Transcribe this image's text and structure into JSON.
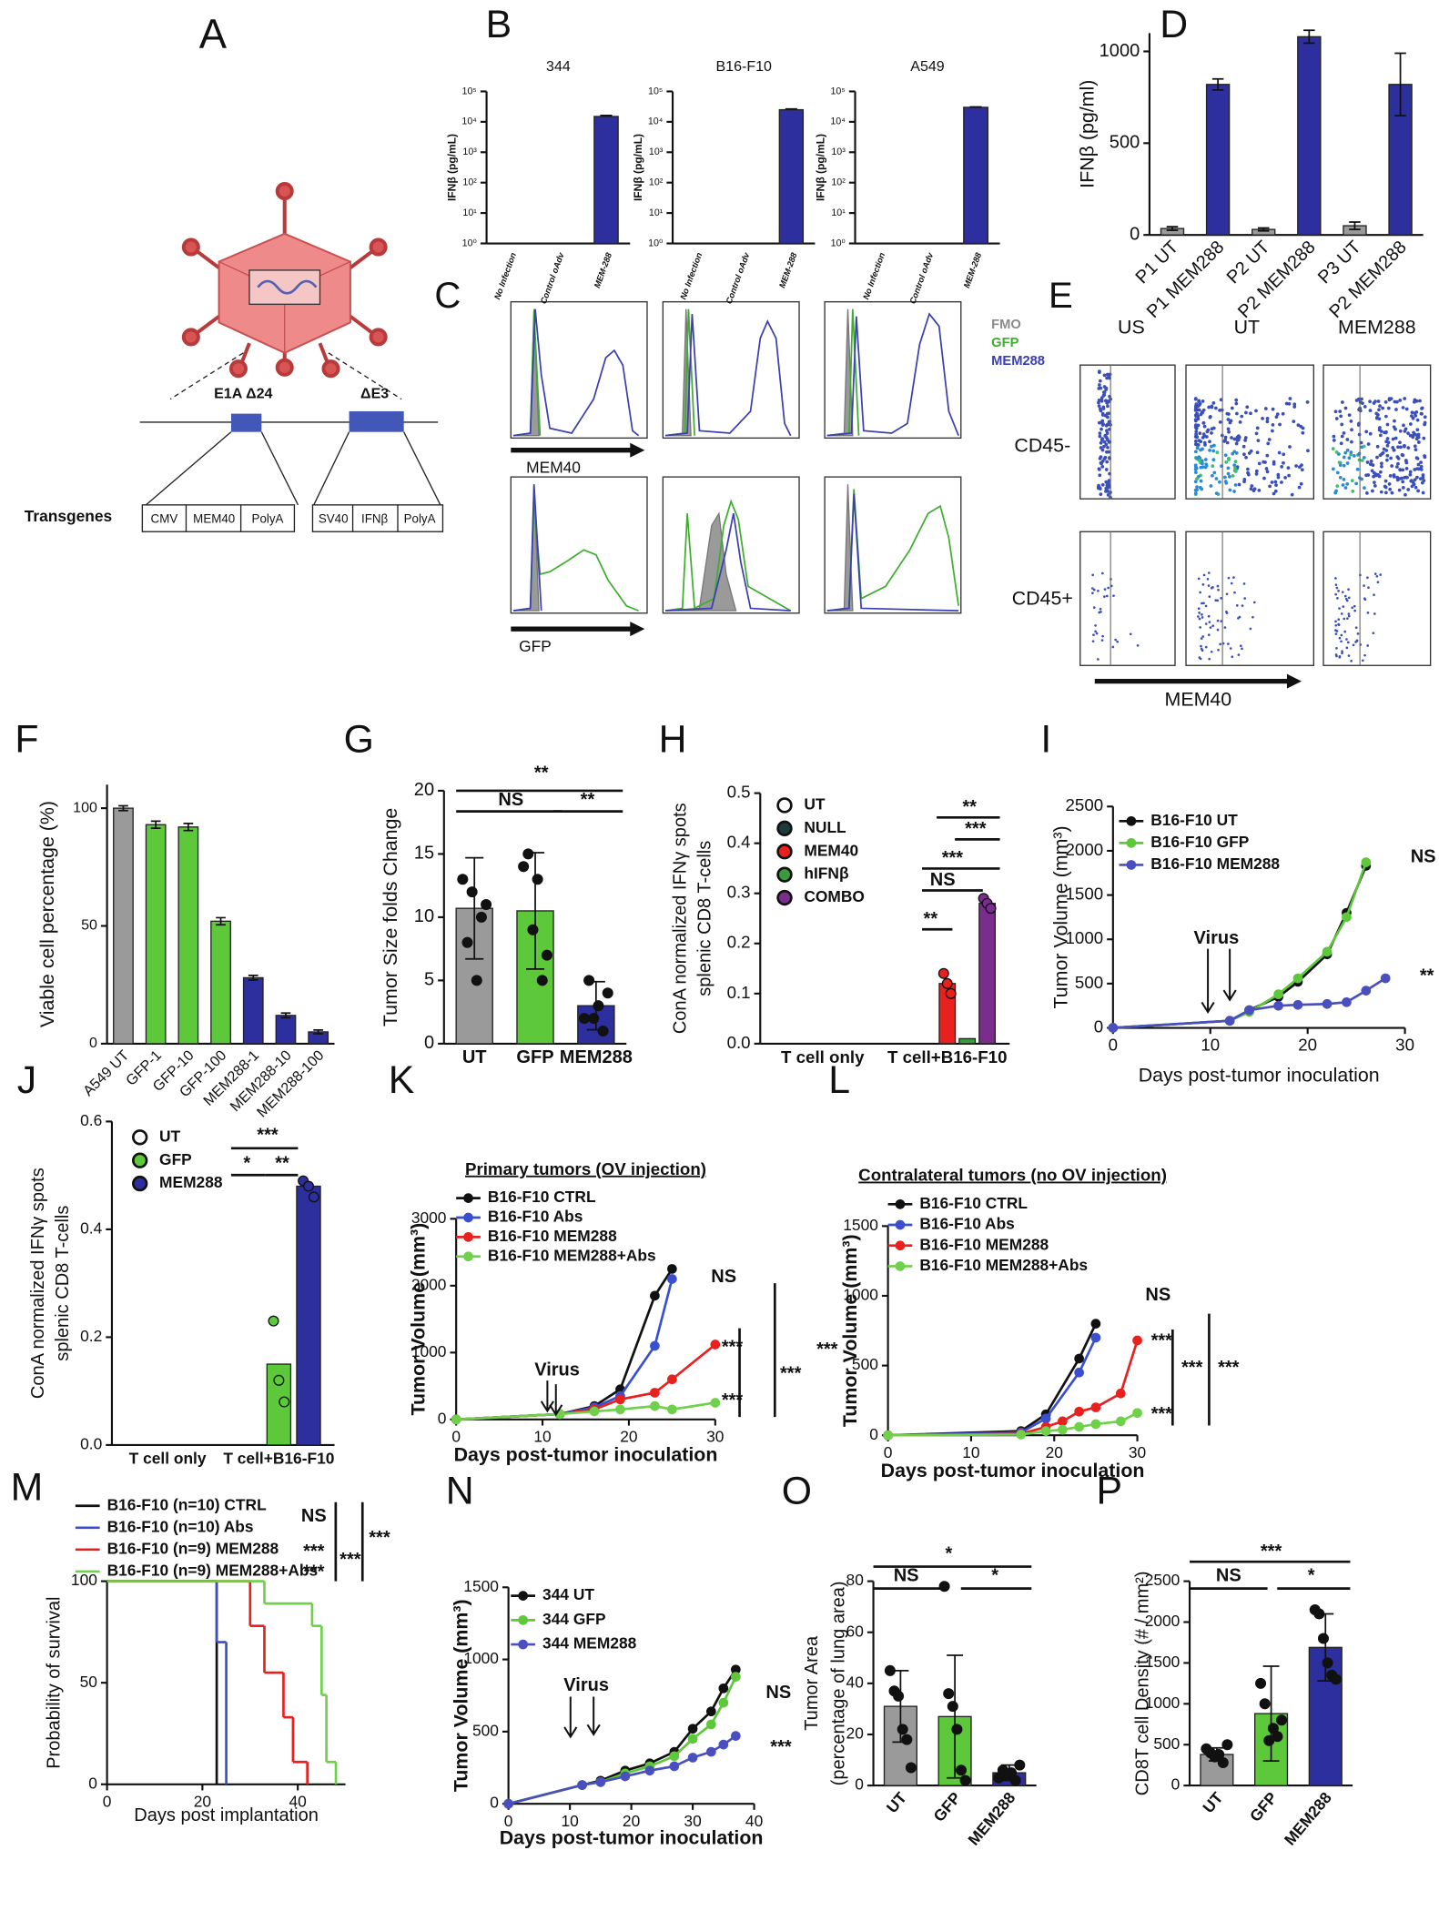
{
  "diagram": {
    "panel": "A",
    "labels": [
      "E1A Δ24",
      "ΔE3"
    ],
    "transgenes_title": "Transgenes",
    "cassette1": [
      "CMV",
      "MEM40",
      "PolyA"
    ],
    "cassette2": [
      "SV40",
      "IFNβ",
      "PolyA"
    ]
  },
  "flow_histograms": {
    "panel": "C",
    "legend": [
      "FMO",
      "GFP",
      "MEM288"
    ],
    "x_labels": [
      "MEM40",
      "GFP"
    ]
  },
  "flow_scatter": {
    "panel": "E",
    "columns": [
      "US",
      "UT",
      "MEM288"
    ],
    "rows": [
      "CD45-",
      "CD45+"
    ],
    "x_label": "MEM40"
  },
  "chart_data": [
    {
      "type": "bar",
      "panel": "B",
      "title": "344",
      "categories": [
        "No Infection",
        "Control oAdv",
        "MEM-288"
      ],
      "values": [
        1,
        1,
        15000
      ],
      "errors": [
        0,
        0,
        1200
      ],
      "color": "#2d2f9e",
      "ylabel": "IFNβ (pg/mL)",
      "log": true,
      "ylim": [
        1,
        100000
      ],
      "yticks": [
        {
          "value": 1,
          "label": "10⁰"
        },
        {
          "value": 10,
          "label": "10¹"
        },
        {
          "value": 100,
          "label": "10²"
        },
        {
          "value": 1000,
          "label": "10³"
        },
        {
          "value": 10000,
          "label": "10⁴"
        },
        {
          "value": 100000,
          "label": "10⁵"
        }
      ]
    },
    {
      "type": "bar",
      "title": "B16-F10",
      "categories": [
        "No Infection",
        "Control oAdv",
        "MEM-288"
      ],
      "values": [
        1,
        1,
        25000
      ],
      "errors": [
        0,
        0,
        1500
      ],
      "color": "#2d2f9e",
      "ylabel": "IFNβ (pg/mL)",
      "log": true,
      "ylim": [
        1,
        100000
      ],
      "yticks": [
        {
          "value": 1,
          "label": "10⁰"
        },
        {
          "value": 10,
          "label": "10¹"
        },
        {
          "value": 100,
          "label": "10²"
        },
        {
          "value": 1000,
          "label": "10³"
        },
        {
          "value": 10000,
          "label": "10⁴"
        },
        {
          "value": 100000,
          "label": "10⁵"
        }
      ]
    },
    {
      "type": "bar",
      "title": "A549",
      "categories": [
        "No Infection",
        "Control oAdv",
        "MEM-288"
      ],
      "values": [
        1,
        1,
        30000
      ],
      "errors": [
        0,
        0,
        1000
      ],
      "color": "#2d2f9e",
      "ylabel": "IFNβ (pg/mL)",
      "log": true,
      "ylim": [
        1,
        100000
      ],
      "yticks": [
        {
          "value": 1,
          "label": "10⁰"
        },
        {
          "value": 10,
          "label": "10¹"
        },
        {
          "value": 100,
          "label": "10²"
        },
        {
          "value": 1000,
          "label": "10³"
        },
        {
          "value": 10000,
          "label": "10⁴"
        },
        {
          "value": 100000,
          "label": "10⁵"
        }
      ]
    },
    {
      "type": "bar",
      "panel": "D",
      "categories": [
        "P1 UT",
        "P1 MEM288",
        "P2 UT",
        "P2 MEM288",
        "P3 UT",
        "P2 MEM288"
      ],
      "values": [
        35,
        820,
        30,
        1080,
        50,
        820
      ],
      "errors": [
        10,
        30,
        8,
        35,
        20,
        170
      ],
      "colors": [
        "#9a9a9a",
        "#2d2f9e",
        "#9a9a9a",
        "#2d2f9e",
        "#9a9a9a",
        "#2d2f9e"
      ],
      "ylabel": "IFNβ (pg/ml)",
      "ylim": [
        0,
        1100
      ],
      "yticks": [
        0,
        500,
        1000
      ]
    },
    {
      "type": "bar",
      "panel": "F",
      "categories": [
        "A549 UT",
        "GFP-1",
        "GFP-10",
        "GFP-100",
        "MEM288-1",
        "MEM288-10",
        "MEM288-100"
      ],
      "values": [
        100,
        93,
        92,
        52,
        28,
        12,
        5
      ],
      "errors": [
        1,
        1.5,
        1.5,
        1.5,
        1,
        1,
        0.8
      ],
      "colors": [
        "#9a9a9a",
        "#5dc83a",
        "#5dc83a",
        "#5dc83a",
        "#2d2f9e",
        "#2d2f9e",
        "#2d2f9e"
      ],
      "ylabel": "Viable cell percentage (%)",
      "ylim": [
        0,
        110
      ],
      "yticks": [
        0,
        50,
        100
      ]
    },
    {
      "type": "bar",
      "panel": "G",
      "categories": [
        "UT",
        "GFP",
        "MEM288"
      ],
      "values": [
        10.7,
        10.5,
        3.0
      ],
      "errors": [
        4,
        4.6,
        1.9
      ],
      "points": [
        [
          13,
          8,
          12,
          5,
          10,
          11
        ],
        [
          14,
          15,
          9,
          13,
          5,
          7
        ],
        [
          2,
          5,
          2,
          3,
          1,
          4
        ]
      ],
      "colors": [
        "#9a9a9a",
        "#5dc83a",
        "#2d2f9e"
      ],
      "ylabel": "Tumor Size folds Change",
      "ylim": [
        0,
        20
      ],
      "yticks": [
        0,
        5,
        10,
        15,
        20
      ],
      "annotations": [
        "**",
        "NS",
        "**"
      ]
    },
    {
      "type": "bar",
      "panel": "H",
      "categories": [
        "T cell only",
        "T cell+B16-F10"
      ],
      "series": [
        {
          "name": "UT",
          "color": "#ffffff",
          "values": [
            0,
            0
          ]
        },
        {
          "name": "NULL",
          "color": "#1d3b3b",
          "values": [
            0,
            0
          ]
        },
        {
          "name": "MEM40",
          "color": "#e8201e",
          "values": [
            0,
            0.12
          ],
          "points": [
            null,
            [
              0.14,
              0.12,
              0.1
            ]
          ]
        },
        {
          "name": "hIFNβ",
          "color": "#3c9a3c",
          "values": [
            0,
            0.01
          ]
        },
        {
          "name": "COMBO",
          "color": "#7b2d8e",
          "values": [
            0,
            0.28
          ],
          "points": [
            null,
            [
              0.29,
              0.28,
              0.27
            ]
          ]
        }
      ],
      "ylabel": [
        "ConA normalized IFNγ spots",
        "splenic CD8 T-cells"
      ],
      "ylim": [
        0,
        0.5
      ],
      "yticks": [
        {
          "value": 0,
          "label": "0.0"
        },
        0.1,
        0.2,
        0.3,
        0.4,
        0.5
      ],
      "annotations": [
        "**",
        "***",
        "***",
        "NS",
        "**"
      ]
    },
    {
      "type": "line",
      "panel": "I",
      "series": [
        {
          "name": "B16-F10 UT",
          "color": "#111111",
          "x": [
            0,
            12,
            14,
            17,
            19,
            22,
            24,
            26
          ],
          "values": [
            0,
            80,
            200,
            350,
            520,
            830,
            1300,
            1830
          ]
        },
        {
          "name": "B16-F10 GFP",
          "color": "#5dc83a",
          "x": [
            0,
            12,
            14,
            17,
            19,
            22,
            24,
            26
          ],
          "values": [
            0,
            80,
            180,
            380,
            560,
            860,
            1250,
            1870
          ]
        },
        {
          "name": "B16-F10 MEM288",
          "color": "#4a4fc0",
          "x": [
            0,
            12,
            14,
            17,
            19,
            22,
            24,
            26,
            28
          ],
          "values": [
            0,
            80,
            200,
            250,
            260,
            270,
            290,
            420,
            560
          ]
        }
      ],
      "xlabel": "Days post-tumor inoculation",
      "ylabel": "Tumor  Volume (mm³)",
      "xlim": [
        0,
        30
      ],
      "xticks": [
        0,
        10,
        20,
        30
      ],
      "ylim": [
        0,
        2500
      ],
      "yticks": [
        0,
        500,
        1000,
        1500,
        2000,
        2500
      ],
      "annotations": [
        "Virus",
        "NS",
        "**"
      ]
    },
    {
      "type": "bar",
      "panel": "J",
      "categories": [
        "T cell only",
        "T cell+B16-F10"
      ],
      "series": [
        {
          "name": "UT",
          "color": "#ffffff",
          "values": [
            0,
            0
          ]
        },
        {
          "name": "GFP",
          "color": "#5dc83a",
          "values": [
            0,
            0.15
          ],
          "points": [
            null,
            [
              0.23,
              0.12,
              0.08
            ]
          ]
        },
        {
          "name": "MEM288",
          "color": "#2d2f9e",
          "values": [
            0,
            0.48
          ],
          "points": [
            null,
            [
              0.49,
              0.48,
              0.46
            ]
          ]
        }
      ],
      "ylabel": [
        "ConA normalized IFNγ spots",
        "splenic CD8 T-cells"
      ],
      "ylim": [
        0,
        0.6
      ],
      "yticks": [
        {
          "value": 0,
          "label": "0.0"
        },
        0.2,
        0.4,
        0.6
      ],
      "annotations": [
        "***",
        "*",
        "**"
      ]
    },
    {
      "type": "line",
      "panel": "K",
      "title": "Primary tumors (OV injection)",
      "series": [
        {
          "name": "B16-F10 CTRL",
          "color": "#111111",
          "x": [
            0,
            12,
            16,
            19,
            23,
            25
          ],
          "values": [
            0,
            80,
            200,
            450,
            1850,
            2250
          ]
        },
        {
          "name": "B16-F10 Abs",
          "color": "#3a4fd0",
          "x": [
            0,
            12,
            16,
            19,
            23,
            25
          ],
          "values": [
            0,
            80,
            180,
            350,
            1100,
            2100
          ]
        },
        {
          "name": "B16-F10 MEM288",
          "color": "#e8201e",
          "x": [
            0,
            12,
            16,
            19,
            23,
            25,
            30
          ],
          "values": [
            0,
            80,
            150,
            300,
            400,
            600,
            1120
          ]
        },
        {
          "name": "B16-F10 MEM288+Abs",
          "color": "#6fd04a",
          "x": [
            0,
            12,
            16,
            19,
            23,
            25,
            30
          ],
          "values": [
            0,
            80,
            120,
            150,
            200,
            150,
            250
          ]
        }
      ],
      "xlabel": "Days post-tumor inoculation",
      "ylabel": "Tumor  Volume (mm³)",
      "xlim": [
        0,
        30
      ],
      "xticks": [
        0,
        10,
        20,
        30
      ],
      "ylim": [
        0,
        3000
      ],
      "yticks": [
        0,
        1000,
        2000,
        3000
      ],
      "annotations": [
        "Virus",
        "NS",
        "***",
        "***",
        "***",
        "***"
      ]
    },
    {
      "type": "line",
      "panel": "L",
      "title": "Contralateral tumors (no OV injection)",
      "series": [
        {
          "name": "B16-F10 CTRL",
          "color": "#111111",
          "x": [
            0,
            16,
            19,
            23,
            25
          ],
          "values": [
            0,
            30,
            150,
            550,
            800
          ]
        },
        {
          "name": "B16-F10 Abs",
          "color": "#3a4fd0",
          "x": [
            0,
            16,
            19,
            23,
            25
          ],
          "values": [
            0,
            20,
            120,
            450,
            700
          ]
        },
        {
          "name": "B16-F10 MEM288",
          "color": "#e8201e",
          "x": [
            0,
            16,
            19,
            21,
            23,
            25,
            28,
            30
          ],
          "values": [
            0,
            10,
            60,
            100,
            170,
            200,
            300,
            680
          ]
        },
        {
          "name": "B16-F10 MEM288+Abs",
          "color": "#6fd04a",
          "x": [
            0,
            16,
            19,
            21,
            23,
            25,
            28,
            30
          ],
          "values": [
            0,
            5,
            30,
            40,
            60,
            80,
            100,
            160
          ]
        }
      ],
      "xlabel": "Days post-tumor inoculation",
      "ylabel": "Tumor  Volume (mm³)",
      "xlim": [
        0,
        30
      ],
      "xticks": [
        0,
        10,
        20,
        30
      ],
      "ylim": [
        0,
        1500
      ],
      "yticks": [
        0,
        500,
        1000,
        1500
      ],
      "annotations": [
        "NS",
        "***",
        "***",
        "***",
        "***"
      ]
    },
    {
      "type": "step",
      "panel": "M",
      "series": [
        {
          "name": "B16-F10 (n=10) CTRL",
          "color": "#111111",
          "x": [
            0,
            23
          ],
          "values": [
            100,
            0
          ]
        },
        {
          "name": "B16-F10 (n=10) Abs",
          "color": "#3a4fd0",
          "x": [
            0,
            23,
            25
          ],
          "values": [
            100,
            70,
            0
          ]
        },
        {
          "name": "B16-F10 (n=9) MEM288",
          "color": "#e8201e",
          "x": [
            0,
            30,
            33,
            37,
            39,
            42
          ],
          "values": [
            100,
            78,
            55,
            33,
            11,
            0
          ]
        },
        {
          "name": "B16-F10 (n=9) MEM288+Abs",
          "color": "#6fd04a",
          "x": [
            0,
            33,
            43,
            45,
            46,
            48
          ],
          "values": [
            100,
            89,
            78,
            44,
            11,
            0
          ]
        }
      ],
      "xlabel": "Days post implantation",
      "ylabel": "Probability of survival",
      "xlim": [
        0,
        50
      ],
      "xticks": [
        0,
        20,
        40
      ],
      "ylim": [
        0,
        100
      ],
      "yticks": [
        0,
        50,
        100
      ],
      "annotations": [
        "NS",
        "***",
        "***",
        "***",
        "***"
      ]
    },
    {
      "type": "line",
      "panel": "N",
      "series": [
        {
          "name": "344 UT",
          "color": "#111111",
          "x": [
            0,
            12,
            15,
            19,
            23,
            27,
            30,
            33,
            35,
            37
          ],
          "values": [
            0,
            130,
            160,
            230,
            280,
            360,
            520,
            640,
            800,
            930
          ]
        },
        {
          "name": "344 GFP",
          "color": "#5dc83a",
          "x": [
            0,
            12,
            15,
            19,
            23,
            27,
            30,
            33,
            35,
            37
          ],
          "values": [
            0,
            130,
            150,
            210,
            260,
            330,
            450,
            550,
            700,
            880
          ]
        },
        {
          "name": "344 MEM288",
          "color": "#4a4fc0",
          "x": [
            0,
            12,
            15,
            19,
            23,
            27,
            30,
            33,
            35,
            37
          ],
          "values": [
            0,
            130,
            150,
            190,
            230,
            260,
            320,
            360,
            410,
            470
          ]
        }
      ],
      "xlabel": "Days post-tumor inoculation",
      "ylabel": "Tumor  Volume (mm³)",
      "xlim": [
        0,
        40
      ],
      "xticks": [
        0,
        10,
        20,
        30,
        40
      ],
      "ylim": [
        0,
        1500
      ],
      "yticks": [
        0,
        500,
        1000,
        1500
      ],
      "annotations": [
        "Virus",
        "NS",
        "***"
      ]
    },
    {
      "type": "bar",
      "panel": "O",
      "categories": [
        "UT",
        "GFP",
        "MEM288"
      ],
      "values": [
        31,
        27,
        5
      ],
      "errors": [
        14,
        24,
        3
      ],
      "points": [
        [
          45,
          37,
          35,
          22,
          18,
          7
        ],
        [
          78,
          36,
          31,
          22,
          6,
          2
        ],
        [
          3,
          6,
          4,
          5,
          2,
          8
        ]
      ],
      "colors": [
        "#9a9a9a",
        "#5dc83a",
        "#2d2f9e"
      ],
      "ylabel": [
        "Tumor Area",
        "(percentage of lung area)"
      ],
      "ylim": [
        0,
        80
      ],
      "yticks": [
        0,
        20,
        40,
        60,
        80
      ],
      "annotations": [
        "*",
        "NS",
        "*"
      ]
    },
    {
      "type": "bar",
      "panel": "P",
      "categories": [
        "UT",
        "GFP",
        "MEM288"
      ],
      "values": [
        380,
        880,
        1690
      ],
      "errors": [
        80,
        580,
        410
      ],
      "points": [
        [
          450,
          400,
          350,
          380,
          280,
          500
        ],
        [
          1250,
          1000,
          550,
          700,
          600,
          800
        ],
        [
          2150,
          2100,
          1800,
          1500,
          1350,
          1300
        ]
      ],
      "colors": [
        "#9a9a9a",
        "#5dc83a",
        "#2d2f9e"
      ],
      "ylabel": "CD8T cell Density (# / mm²)",
      "ylim": [
        0,
        2500
      ],
      "yticks": [
        0,
        500,
        1000,
        1500,
        2000,
        2500
      ],
      "annotations": [
        "***",
        "NS",
        "*"
      ]
    }
  ]
}
